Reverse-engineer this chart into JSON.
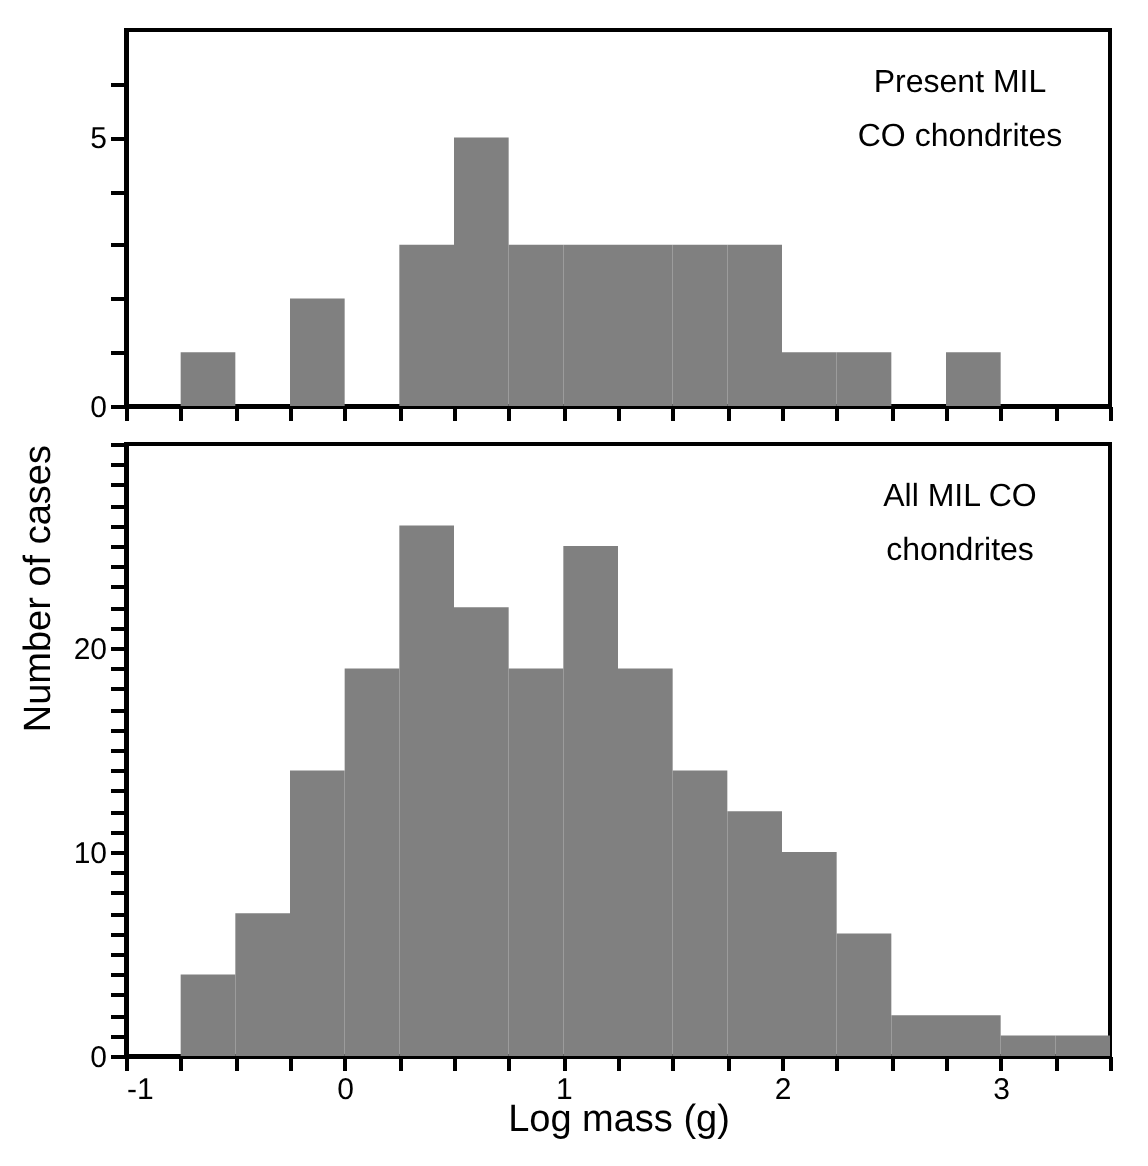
{
  "chart_data": [
    {
      "type": "histogram",
      "annotations": [
        "Present MIL\nCO chondrites"
      ],
      "bins": [
        -0.75,
        -0.5,
        -0.25,
        0,
        0.25,
        0.5,
        0.75,
        1,
        1.25,
        1.5,
        1.75,
        2,
        2.25,
        2.5,
        2.75,
        3
      ],
      "values": [
        1,
        0,
        2,
        0,
        3,
        5,
        3,
        3,
        3,
        3,
        3,
        1,
        1,
        0,
        1
      ],
      "color": "#808080",
      "xlim": [
        -1,
        3.5
      ],
      "xticks": [
        -1,
        -0.75,
        -0.5,
        -0.25,
        0,
        0.25,
        0.5,
        0.75,
        1,
        1.25,
        1.5,
        1.75,
        2,
        2.25,
        2.5,
        2.75,
        3,
        3.25,
        3.5
      ],
      "ylim": [
        0,
        7
      ],
      "yticks": [
        0,
        {
          "value": 1,
          "label": null
        },
        {
          "value": 2,
          "label": null
        },
        {
          "value": 3,
          "label": null
        },
        {
          "value": 4,
          "label": null
        },
        5,
        {
          "value": 6,
          "label": null
        }
      ],
      "tick_labels": "y",
      "grid": false
    },
    {
      "type": "histogram",
      "xlabel": "Log mass (g)",
      "ylabel": "Number of cases",
      "annotations": [
        "All MIL CO\nchondrites"
      ],
      "bins": [
        -0.75,
        -0.5,
        -0.25,
        0,
        0.25,
        0.5,
        0.75,
        1,
        1.25,
        1.5,
        1.75,
        2,
        2.25,
        2.5,
        2.75,
        3,
        3.25,
        3.5
      ],
      "values": [
        4,
        7,
        14,
        19,
        26,
        22,
        19,
        25,
        19,
        14,
        12,
        10,
        6,
        2,
        2,
        1,
        1
      ],
      "color": "#808080",
      "xlim": [
        -1,
        3.5
      ],
      "xticks": [
        -1,
        {
          "value": -0.75,
          "label": null
        },
        {
          "value": -0.5,
          "label": null
        },
        {
          "value": -0.25,
          "label": null
        },
        0,
        {
          "value": 0.25,
          "label": null
        },
        {
          "value": 0.5,
          "label": null
        },
        {
          "value": 0.75,
          "label": null
        },
        1,
        {
          "value": 1.25,
          "label": null
        },
        {
          "value": 1.5,
          "label": null
        },
        {
          "value": 1.75,
          "label": null
        },
        2,
        {
          "value": 2.25,
          "label": null
        },
        {
          "value": 2.5,
          "label": null
        },
        {
          "value": 2.75,
          "label": null
        },
        3,
        {
          "value": 3.25,
          "label": null
        },
        {
          "value": 3.5,
          "label": null
        }
      ],
      "ylim": [
        0,
        30
      ],
      "yticks": [
        0,
        {
          "value": 1,
          "label": null
        },
        {
          "value": 2,
          "label": null
        },
        {
          "value": 3,
          "label": null
        },
        {
          "value": 4,
          "label": null
        },
        {
          "value": 5,
          "label": null
        },
        {
          "value": 6,
          "label": null
        },
        {
          "value": 7,
          "label": null
        },
        {
          "value": 8,
          "label": null
        },
        {
          "value": 9,
          "label": null
        },
        10,
        {
          "value": 11,
          "label": null
        },
        {
          "value": 12,
          "label": null
        },
        {
          "value": 13,
          "label": null
        },
        {
          "value": 14,
          "label": null
        },
        {
          "value": 15,
          "label": null
        },
        {
          "value": 16,
          "label": null
        },
        {
          "value": 17,
          "label": null
        },
        {
          "value": 18,
          "label": null
        },
        {
          "value": 19,
          "label": null
        },
        20,
        {
          "value": 21,
          "label": null
        },
        {
          "value": 22,
          "label": null
        },
        {
          "value": 23,
          "label": null
        },
        {
          "value": 24,
          "label": null
        },
        {
          "value": 25,
          "label": null
        },
        {
          "value": 26,
          "label": null
        },
        {
          "value": 27,
          "label": null
        },
        {
          "value": 28,
          "label": null
        },
        {
          "value": 29,
          "label": null
        },
        {
          "value": 30,
          "label": null
        }
      ],
      "grid": false
    }
  ]
}
